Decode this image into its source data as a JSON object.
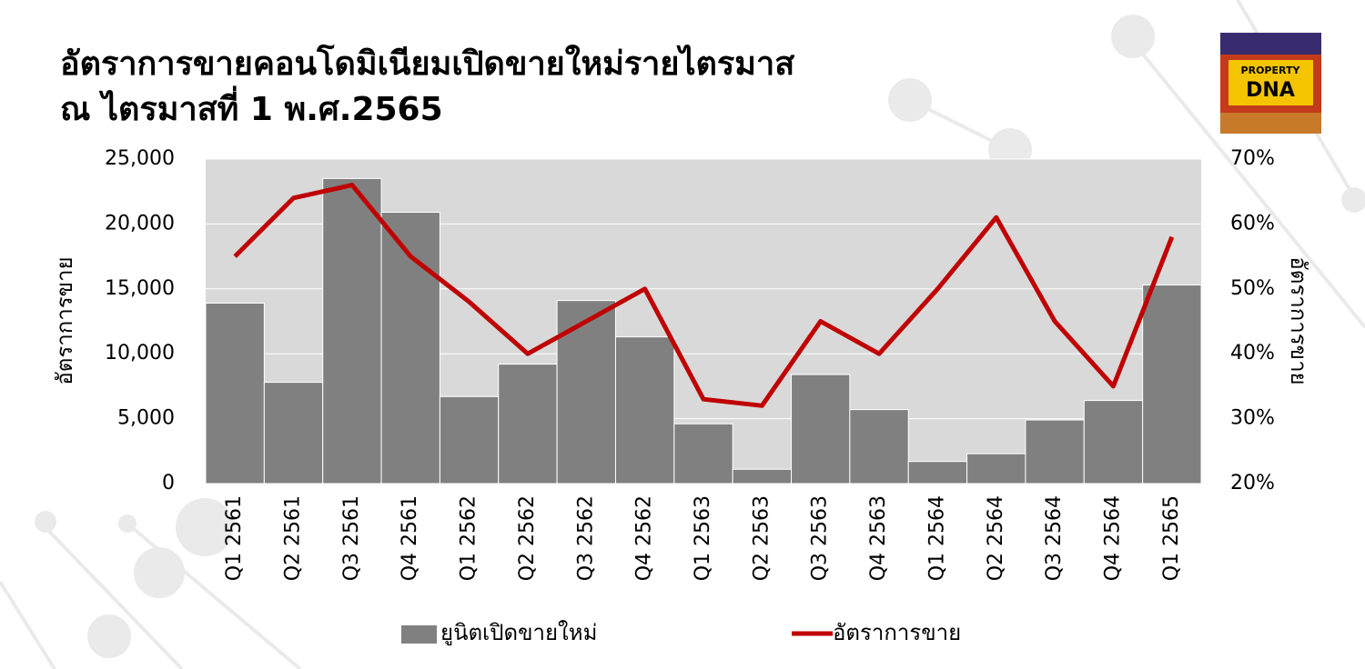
{
  "chart_data": {
    "type": "combo",
    "title": [
      "อัตราการขายคอนโดมิเนียมเปิดขายใหม่รายไตรมาส",
      "ณ ไตรมาสที่ 1 พ.ศ.2565"
    ],
    "logo": [
      "PROPERTY",
      "DNA"
    ],
    "categories": [
      "Q1 2561",
      "Q2 2561",
      "Q3 2561",
      "Q4 2561",
      "Q1 2562",
      "Q2 2562",
      "Q3 2562",
      "Q4 2562",
      "Q1 2563",
      "Q2 2563",
      "Q3 2563",
      "Q4 2563",
      "Q1 2564",
      "Q2 2564",
      "Q3 2564",
      "Q4 2564",
      "Q1 2565"
    ],
    "series": [
      {
        "name": "ยูนิตเปิดขายใหม่",
        "type": "bar",
        "color": "#808080",
        "values": [
          13900,
          7800,
          23500,
          20900,
          6700,
          9200,
          14100,
          11300,
          4600,
          1100,
          8400,
          5700,
          1700,
          2300,
          4900,
          6400,
          15300
        ]
      },
      {
        "name": "อัตราการขาย",
        "type": "line",
        "axis": "y2",
        "color": "#c00000",
        "values": [
          55,
          64,
          66,
          55,
          48,
          40,
          45,
          50,
          33,
          32,
          45,
          40,
          50,
          61,
          45,
          35,
          58
        ]
      }
    ],
    "ylabel": "อัตราการขาย",
    "y2label": "อัตราการขาย",
    "ylim": [
      0,
      25000
    ],
    "yticks": [
      0,
      {
        "value": 5000,
        "label": "5,000"
      },
      {
        "value": 10000,
        "label": "10,000"
      },
      {
        "value": 15000,
        "label": "15,000"
      },
      {
        "value": 20000,
        "label": "20,000"
      },
      {
        "value": 25000,
        "label": "25,000"
      }
    ],
    "y2lim": [
      20,
      70
    ],
    "y2ticks": [
      {
        "value": 20,
        "label": "20%"
      },
      {
        "value": 30,
        "label": "30%"
      },
      {
        "value": 40,
        "label": "40%"
      },
      {
        "value": 50,
        "label": "50%"
      },
      {
        "value": 60,
        "label": "60%"
      },
      {
        "value": 70,
        "label": "70%"
      }
    ],
    "grid": true,
    "legend": "bottom"
  }
}
